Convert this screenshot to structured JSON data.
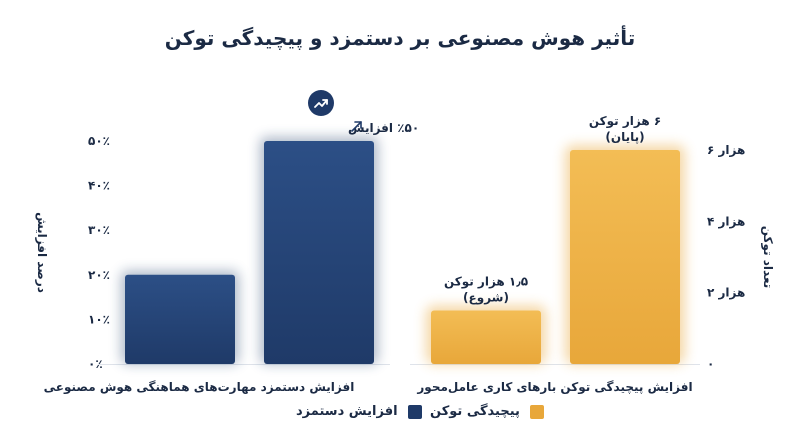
{
  "title": "تأثیر هوش مصنوعی بر دستمزد و پیچیدگی توکن",
  "colors": {
    "navy": "#1f3a68",
    "navy_light": "#2c4f86",
    "gold": "#e8a73a",
    "gold_light": "#f3bd55",
    "axis_text": "#1b2a44",
    "grid": "#dfe3ea"
  },
  "icons": {
    "trend": "trending-up-icon",
    "arrow": "arrow-up-right-icon"
  },
  "chart_data": [
    {
      "type": "bar",
      "ylabel": "درصد افزایش",
      "ylim": [
        0,
        50
      ],
      "yticks": [
        "۰٪",
        "۱۰٪",
        "۲۰٪",
        "۳۰٪",
        "۴۰٪",
        "۵۰٪"
      ],
      "ytick_values": [
        0,
        10,
        20,
        30,
        40,
        50
      ],
      "xlabel": "افزایش دستمزد مهارت‌های هماهنگی هوش مصنوعی",
      "series": [
        {
          "name": "افزایش دستمزد",
          "values": [
            20,
            50
          ]
        }
      ],
      "annotations": [
        {
          "text": "٪۵۰ افزایش",
          "bar_index": 1
        }
      ]
    },
    {
      "type": "bar",
      "ylabel": "تعداد توکن",
      "ylim": [
        0,
        6
      ],
      "yticks": [
        "۰",
        "۲ هزار",
        "۴ هزار",
        "۶ هزار"
      ],
      "ytick_values": [
        0,
        2,
        4,
        6
      ],
      "xlabel": "افزایش پیچیدگی توکن بارهای کاری عامل‌محور",
      "series": [
        {
          "name": "پیچیدگی توکن",
          "values": [
            1.5,
            6
          ]
        }
      ],
      "annotations": [
        {
          "lines": [
            "۱٫۵ هزار توکن",
            "(شروع)"
          ],
          "bar_index": 0
        },
        {
          "lines": [
            "۶ هزار توکن",
            "(پایان)"
          ],
          "bar_index": 1
        }
      ]
    }
  ]
}
